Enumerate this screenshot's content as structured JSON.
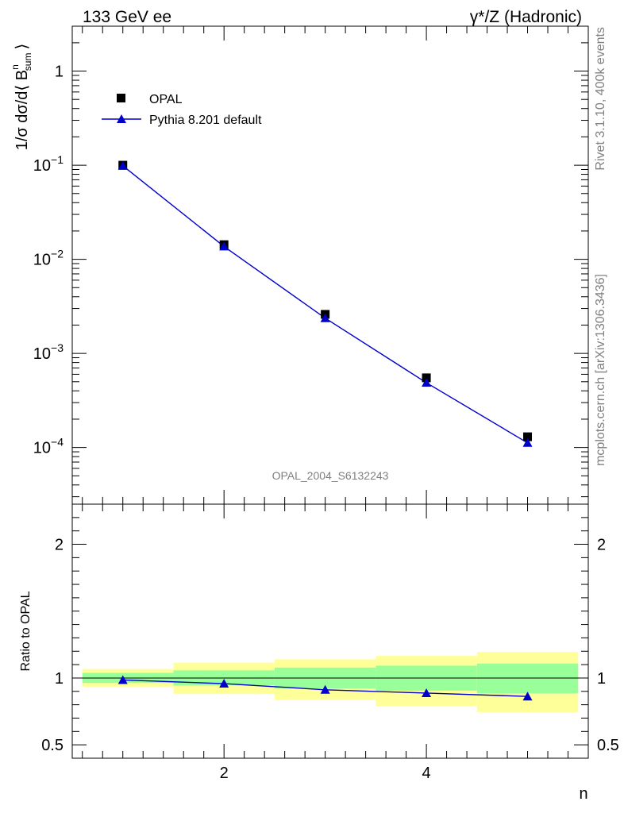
{
  "header": {
    "left": "133 GeV ee",
    "right": "γ*/Z (Hadronic)"
  },
  "side_labels": {
    "top": "Rivet 3.1.10,  400k events",
    "bottom": "mcplots.cern.ch [arXiv:1306.3436]"
  },
  "watermark": "OPAL_2004_S6132243",
  "colors": {
    "mc": "#0000cc",
    "data": "#000000",
    "band_outer": "#ffff99",
    "band_inner": "#99ff99"
  },
  "chart_data": [
    {
      "type": "scatter",
      "panel": "main",
      "ylabel": "1/σ dσ/d⟨ B",
      "ylabel_sup": "n",
      "ylabel_sub": "sum",
      "ylabel_tail": "⟩",
      "yscale": "log",
      "ylim": [
        2.5e-05,
        3
      ],
      "xlim": [
        0.5,
        5.6
      ],
      "yticks": [
        {
          "value": 1,
          "base": "1",
          "exp": ""
        },
        {
          "value": 0.1,
          "base": "10",
          "exp": "−1"
        },
        {
          "value": 0.01,
          "base": "10",
          "exp": "−2"
        },
        {
          "value": 0.001,
          "base": "10",
          "exp": "−3"
        },
        {
          "value": 0.0001,
          "base": "10",
          "exp": "−4"
        }
      ],
      "legend_position": "top-left",
      "series": [
        {
          "name": "OPAL",
          "marker": "square",
          "x": [
            1,
            2,
            3,
            4,
            5
          ],
          "y": [
            0.1,
            0.0143,
            0.0026,
            0.00055,
            0.00013
          ]
        },
        {
          "name": "Pythia 8.201 default",
          "marker": "triangle",
          "x": [
            1,
            2,
            3,
            4,
            5
          ],
          "y": [
            0.0985,
            0.0137,
            0.00237,
            0.000488,
            0.000112
          ]
        }
      ]
    },
    {
      "type": "line",
      "panel": "ratio",
      "ylabel": "Ratio to OPAL",
      "ylim": [
        0.4,
        2.3
      ],
      "xlim": [
        0.5,
        5.6
      ],
      "yticks": [
        {
          "value": 0.5,
          "label": "0.5"
        },
        {
          "value": 1,
          "label": "1"
        },
        {
          "value": 2,
          "label": "2"
        }
      ],
      "xticks": [
        {
          "value": 2,
          "label": "2"
        },
        {
          "value": 4,
          "label": "4"
        }
      ],
      "xlabel": "n",
      "bands": [
        {
          "x0": 0.6,
          "x1": 1.5,
          "inner": [
            0.963,
            1.038
          ],
          "outer": [
            0.935,
            1.067
          ]
        },
        {
          "x0": 1.5,
          "x1": 2.5,
          "inner": [
            0.945,
            1.057
          ],
          "outer": [
            0.88,
            1.115
          ]
        },
        {
          "x0": 2.5,
          "x1": 3.5,
          "inner": [
            0.922,
            1.078
          ],
          "outer": [
            0.835,
            1.14
          ]
        },
        {
          "x0": 3.5,
          "x1": 4.5,
          "inner": [
            0.905,
            1.092
          ],
          "outer": [
            0.79,
            1.165
          ]
        },
        {
          "x0": 4.5,
          "x1": 5.5,
          "inner": [
            0.885,
            1.108
          ],
          "outer": [
            0.745,
            1.195
          ]
        }
      ],
      "series": [
        {
          "name": "Pythia 8.201 default",
          "marker": "triangle",
          "x": [
            1,
            2,
            3,
            4,
            5
          ],
          "y": [
            0.985,
            0.958,
            0.912,
            0.887,
            0.862
          ]
        }
      ]
    }
  ]
}
